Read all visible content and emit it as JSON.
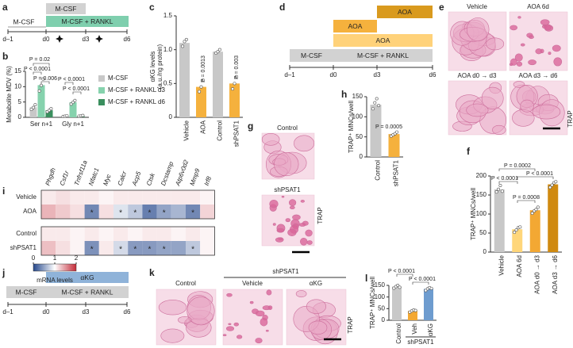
{
  "panel_labels": [
    "a",
    "b",
    "c",
    "d",
    "e",
    "f",
    "g",
    "h",
    "i",
    "j",
    "k",
    "l"
  ],
  "timeline_a": {
    "boxes": [
      "M-CSF",
      "M-CSF + RANKL"
    ],
    "start_label": "M-CSF",
    "days": [
      "d–1",
      "d0",
      "d3",
      "d6"
    ]
  },
  "timeline_d": {
    "boxes": [
      "AOA",
      "AOA",
      "AOA",
      "M-CSF",
      "M-CSF + RANKL"
    ],
    "days": [
      "d–1",
      "d0",
      "d3",
      "d6"
    ]
  },
  "timeline_j": {
    "boxes": [
      "αKG",
      "M-CSF",
      "M-CSF + RANKL"
    ],
    "days": [
      "d–1",
      "d0",
      "d3",
      "d6"
    ]
  },
  "images_e": {
    "labels": [
      "Vehicle",
      "AOA 6d",
      "AOA d0 → d3",
      "AOA d3 → d6"
    ],
    "stain": "TRAP"
  },
  "images_g": {
    "labels": [
      "Control",
      "shPSAT1"
    ],
    "stain": "TRAP"
  },
  "images_k": {
    "labels": [
      "Control",
      "Vehicle",
      "αKG"
    ],
    "group": "shPSAT1",
    "stain": "TRAP"
  },
  "chart_data": [
    {
      "type": "bar",
      "y_label": "Metabolite MDV (%)",
      "categories": [
        "Ser n+1",
        "Gly n+1"
      ],
      "ylim": [
        0,
        15
      ],
      "yticks": [
        0,
        5,
        10,
        15
      ],
      "series": [
        {
          "name": "M-CSF",
          "color": "#c8c8c8",
          "values": [
            3.3,
            0.4
          ],
          "points": [
            [
              2.6,
              3.2,
              4.1
            ],
            [
              0.3,
              0.4,
              0.5
            ]
          ]
        },
        {
          "name": "M-CSF + RANKL d3",
          "color": "#86d2ad",
          "values": [
            10.5,
            4.9
          ],
          "points": [
            [
              8.6,
              10.4,
              12.5
            ],
            [
              4.3,
              4.9,
              5.5
            ]
          ]
        },
        {
          "name": "M-CSF + RANKL d6",
          "color": "#3a8f5e",
          "values": [
            2.3,
            0.5
          ],
          "points": [
            [
              1.8,
              2.3,
              2.8
            ],
            [
              0.4,
              0.5,
              0.6
            ]
          ]
        }
      ],
      "annotations": [
        "P = 0.02",
        "P < 0.0001",
        "P = 0.006",
        "P < 0.0001",
        "P < 0.0001"
      ]
    },
    {
      "type": "bar",
      "y_label": [
        "αKG levels",
        "(a.u./ng protein)"
      ],
      "categories": [
        "Vehicle",
        "AOA",
        "Control",
        "shPSAT1"
      ],
      "ylim": [
        0,
        1.5
      ],
      "yticks": [
        0,
        {
          "value": 0.5,
          "label": "0.5"
        },
        {
          "value": 1,
          "label": "1.0"
        },
        {
          "value": 1.5,
          "label": "1.5"
        }
      ],
      "values": [
        1.1,
        0.45,
        0.97,
        0.5
      ],
      "colors": [
        "#c8c8c8",
        "#f5b13d",
        "#c8c8c8",
        "#f5b13d"
      ],
      "points": [
        [
          1.05,
          1.12,
          1.15
        ],
        [
          0.38,
          0.45,
          0.55
        ],
        [
          0.95,
          0.97,
          1.0
        ],
        [
          0.42,
          0.5,
          0.6
        ]
      ],
      "annotations": [
        "P = 0.0013",
        "P = 0.003"
      ]
    },
    {
      "type": "bar",
      "y_label": "TRAP⁺ MNCs/well",
      "categories": [
        "Control",
        "shPSAT1"
      ],
      "ylim": [
        0,
        150
      ],
      "yticks": [
        0,
        50,
        100,
        150
      ],
      "values": [
        130,
        57
      ],
      "colors": [
        "#c8c8c8",
        "#f5b13d"
      ],
      "points": [
        [
          120,
          135,
          145,
          128
        ],
        [
          52,
          55,
          58,
          62
        ]
      ],
      "annotations": [
        "P = 0.0005"
      ]
    },
    {
      "type": "bar",
      "y_label": "TRAP⁺ MNCs/well",
      "categories": [
        "Vehicle",
        "AOA 6d",
        "AOA d0 → d3",
        "AOA d3 → d6"
      ],
      "ylim": [
        0,
        200
      ],
      "yticks": [
        0,
        50,
        100,
        150,
        200
      ],
      "values": [
        165,
        60,
        110,
        178
      ],
      "colors": [
        "#c8c8c8",
        "#ffd67a",
        "#f3a833",
        "#d08a10"
      ],
      "points": [
        [
          158,
          165,
          175,
          160
        ],
        [
          52,
          58,
          64,
          66
        ],
        [
          102,
          108,
          112,
          118
        ],
        [
          170,
          176,
          182,
          185
        ]
      ],
      "annotations": [
        "P = 0.0002",
        "P < 0.0001",
        "P < 0.0001",
        "P = 0.0008"
      ]
    },
    {
      "type": "bar",
      "y_label": "TRAP⁺ MNCs/well",
      "categories": [
        "Control",
        "Veh",
        "αKG"
      ],
      "group": "shPSAT1",
      "ylim": [
        0,
        150
      ],
      "yticks": [
        0,
        50,
        100,
        150
      ],
      "values": [
        145,
        40,
        135
      ],
      "colors": [
        "#c8c8c8",
        "#f3a833",
        "#6e9ccf"
      ],
      "points": [
        [
          138,
          145,
          150,
          142
        ],
        [
          35,
          40,
          44,
          42
        ],
        [
          128,
          135,
          140,
          137
        ]
      ],
      "annotations": [
        "P < 0.0001",
        "P < 0.0001"
      ]
    },
    {
      "type": "heatmap",
      "columns": [
        "Phgdh",
        "Csf1r",
        "Tnfrsf11a",
        "Nfatc1",
        "Myc",
        "Calcr",
        "Acp5",
        "Ctsk",
        "Dcstamp",
        "Atp6v0d2",
        "Mmp9",
        "Irf8"
      ],
      "rows": [
        "Vehicle",
        "AOA",
        "Control",
        "shPSAT1"
      ],
      "values": [
        [
          1.1,
          1.15,
          1.1,
          1.1,
          1.05,
          1.1,
          1.1,
          1.1,
          1.1,
          1.1,
          1.1,
          1.05
        ],
        [
          1.35,
          1.25,
          1.15,
          0.35,
          1.15,
          0.85,
          0.7,
          0.3,
          0.5,
          0.6,
          0.35,
          1.2
        ],
        [
          1.1,
          1.1,
          1.05,
          1.1,
          1.05,
          1.1,
          1.05,
          1.1,
          1.1,
          1.05,
          1.1,
          1.05
        ],
        [
          1.3,
          1.15,
          1.05,
          0.4,
          1.1,
          0.8,
          0.45,
          0.45,
          0.5,
          0.5,
          0.7,
          1.05
        ]
      ],
      "stars": [
        [
          null,
          null,
          null,
          null,
          null,
          null,
          null,
          null,
          null,
          null,
          null,
          null
        ],
        [
          null,
          null,
          null,
          "*",
          null,
          "*",
          "*",
          "*",
          "*",
          null,
          "*",
          null
        ],
        [
          null,
          null,
          null,
          null,
          null,
          null,
          null,
          null,
          null,
          null,
          null,
          null
        ],
        [
          null,
          null,
          null,
          "*",
          null,
          "*",
          "*",
          "*",
          "*",
          null,
          "*",
          null
        ]
      ],
      "clim": [
        0,
        2
      ],
      "colorbar_ticks": [
        0,
        1,
        2
      ],
      "colorbar_label": "mRNA levels"
    }
  ]
}
